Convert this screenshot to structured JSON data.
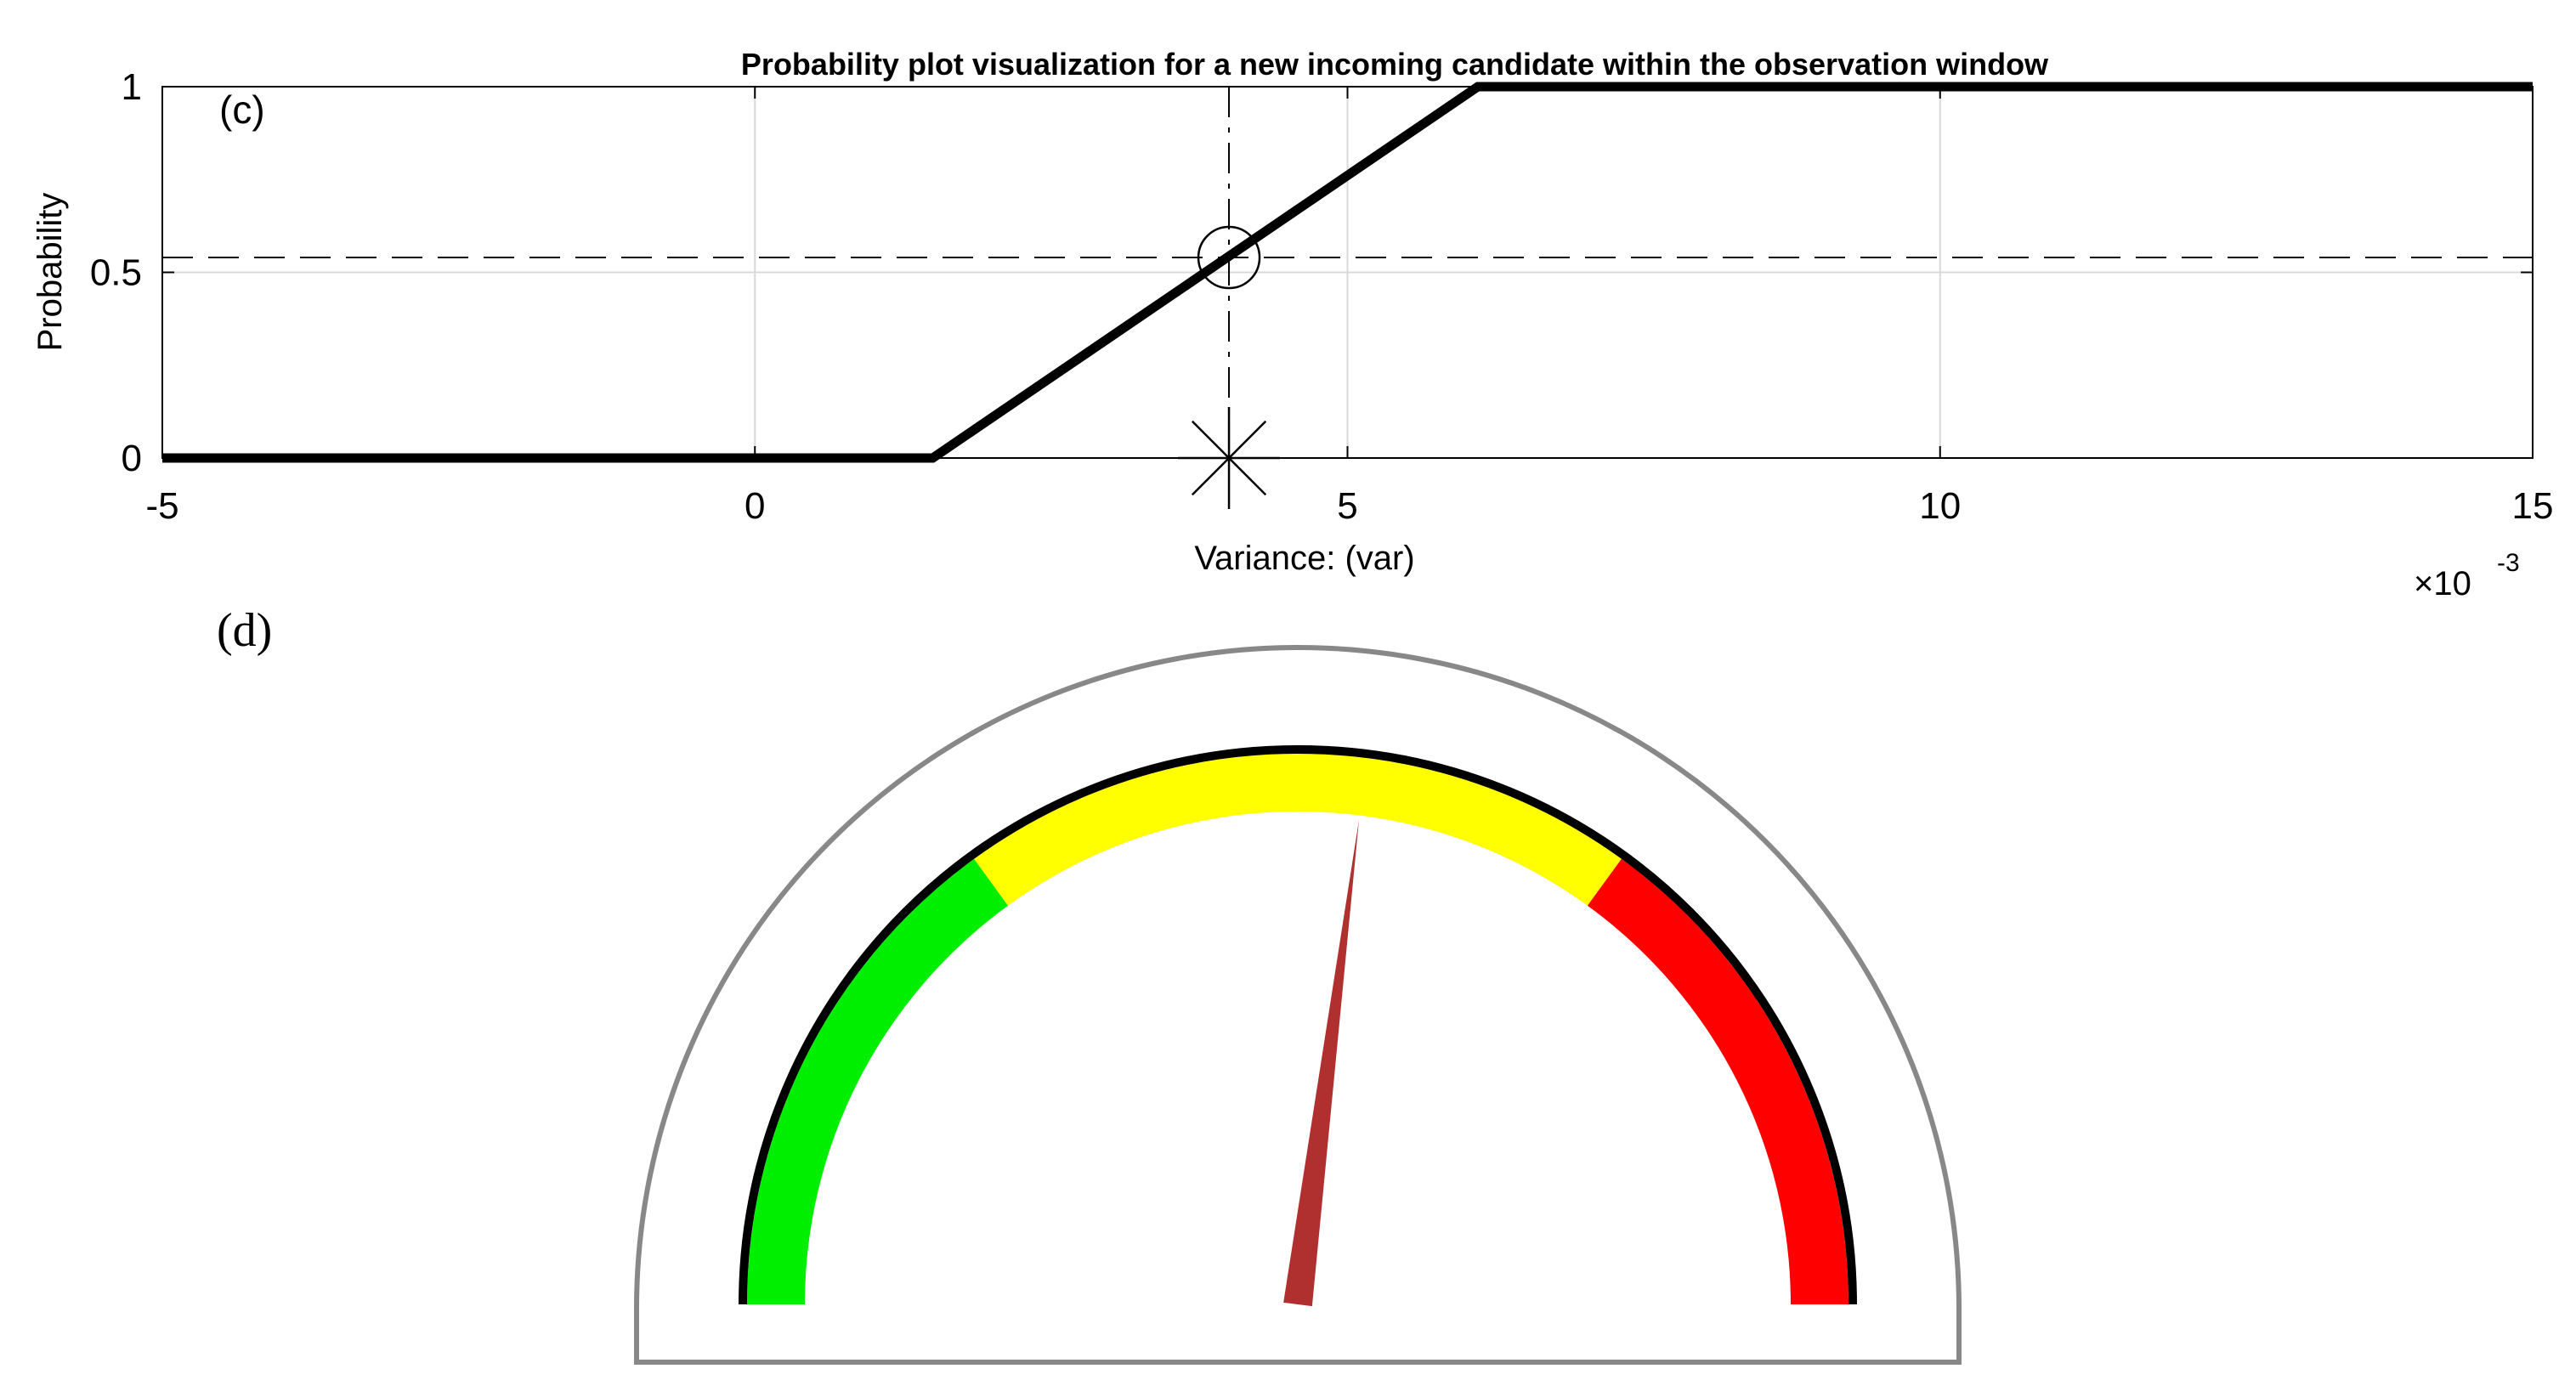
{
  "chart_data": [
    {
      "panel_label": "(c)",
      "type": "line",
      "title": "Probability plot visualization for a new incoming candidate within the observation window",
      "xlabel": "Variance: (var)",
      "ylabel": "Probability",
      "x_multiplier": "×10",
      "x_multiplier_exp": "-3",
      "xlim": [
        -5,
        15
      ],
      "ylim": [
        0,
        1
      ],
      "xticks": [
        -5,
        0,
        5,
        10,
        15
      ],
      "yticks": [
        0,
        0.5,
        1
      ],
      "xtick_labels": [
        "-5",
        "0",
        "5",
        "10",
        "15"
      ],
      "ytick_labels": [
        "0",
        "0.5",
        "1"
      ],
      "grid": true,
      "series": [
        {
          "x": [
            -5,
            1.5,
            6.1,
            15
          ],
          "y": [
            0,
            0,
            1,
            1
          ]
        }
      ],
      "candidate": {
        "x": 4.0,
        "y": 0.54
      },
      "reference_lines": {
        "vertical_x": 4.0,
        "horizontal_y": 0.54
      },
      "colors": {
        "line": "#000000",
        "grid": "#d9d9d9",
        "marker": "#000000"
      }
    },
    {
      "panel_label": "(d)",
      "type": "gauge",
      "range": [
        0,
        1
      ],
      "zones": [
        {
          "from": 0.0,
          "to": 0.3,
          "color": "#00ee00"
        },
        {
          "from": 0.3,
          "to": 0.7,
          "color": "#ffff00"
        },
        {
          "from": 0.7,
          "to": 1.0,
          "color": "#ff0000"
        }
      ],
      "needle_value": 0.54,
      "needle_color": "#b03030",
      "rim_color": "#000000",
      "frame_color": "#888888"
    }
  ]
}
